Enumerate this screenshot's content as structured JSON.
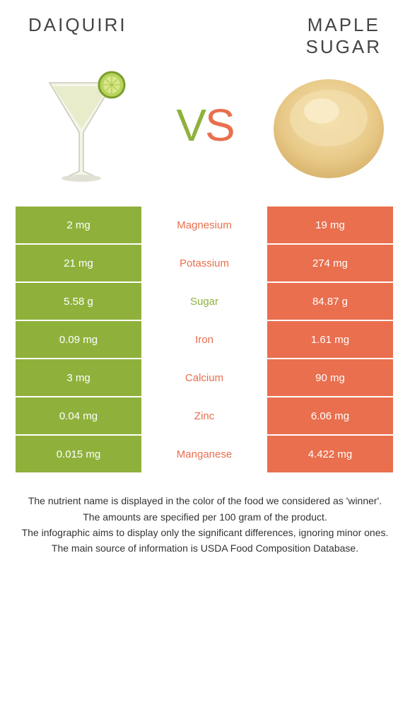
{
  "header": {
    "left_title": "DAIQUIRI",
    "right_title_line1": "MAPLE",
    "right_title_line2": "SUGAR"
  },
  "vs": {
    "v": "V",
    "s": "S"
  },
  "colors": {
    "left": "#8fb13c",
    "right": "#e96f4e",
    "mid_bg": "#ffffff",
    "text_on_color": "#ffffff"
  },
  "table": {
    "rows": [
      {
        "left": "2 mg",
        "label": "Magnesium",
        "right": "19 mg",
        "winner": "right"
      },
      {
        "left": "21 mg",
        "label": "Potassium",
        "right": "274 mg",
        "winner": "right"
      },
      {
        "left": "5.58 g",
        "label": "Sugar",
        "right": "84.87 g",
        "winner": "left"
      },
      {
        "left": "0.09 mg",
        "label": "Iron",
        "right": "1.61 mg",
        "winner": "right"
      },
      {
        "left": "3 mg",
        "label": "Calcium",
        "right": "90 mg",
        "winner": "right"
      },
      {
        "left": "0.04 mg",
        "label": "Zinc",
        "right": "6.06 mg",
        "winner": "right"
      },
      {
        "left": "0.015 mg",
        "label": "Manganese",
        "right": "4.422 mg",
        "winner": "right"
      }
    ]
  },
  "footer": {
    "line1": "The nutrient name is displayed in the color of the food we considered as 'winner'.",
    "line2": "The amounts are specified per 100 gram of the product.",
    "line3": "The infographic aims to display only the significant differences, ignoring minor ones.",
    "line4": "The main source of information is USDA Food Composition Database."
  },
  "images": {
    "left_alt": "daiquiri-cocktail",
    "right_alt": "maple-sugar-powder"
  }
}
